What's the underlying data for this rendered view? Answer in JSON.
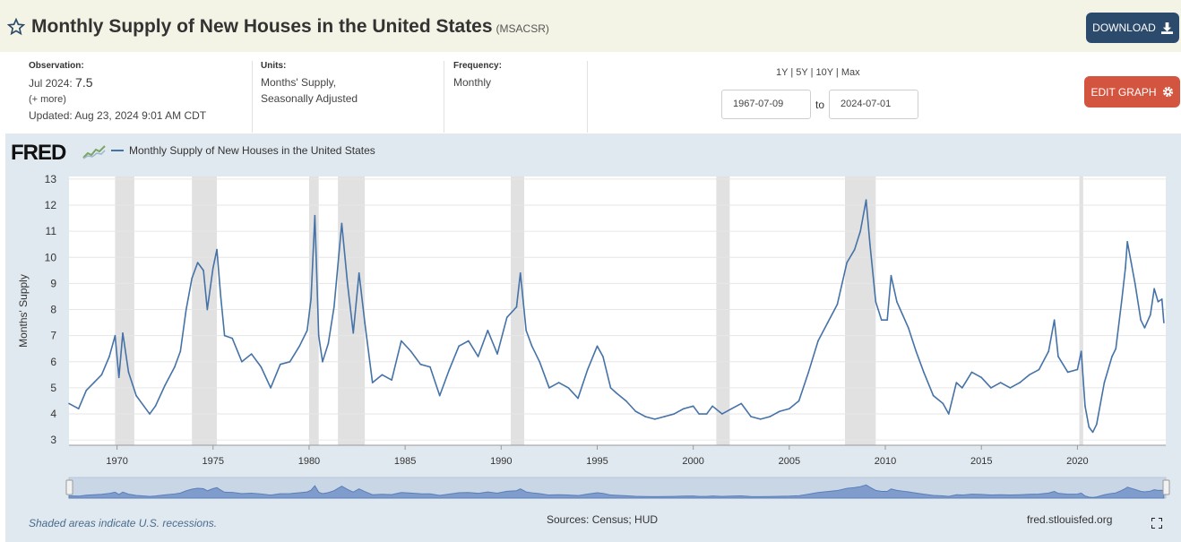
{
  "header": {
    "title": "Monthly Supply of New Houses in the United States",
    "series_id": "(MSACSR)",
    "download_label": "DOWNLOAD"
  },
  "meta": {
    "observation_label": "Observation:",
    "observation_date": "Jul 2024:",
    "observation_value": "7.5",
    "more_link": "(+ more)",
    "updated": "Updated: Aug 23, 2024 9:01 AM CDT",
    "units_label": "Units:",
    "units_line1": "Months' Supply,",
    "units_line2": "Seasonally Adjusted",
    "frequency_label": "Frequency:",
    "frequency_value": "Monthly"
  },
  "controls": {
    "range_links": [
      "1Y",
      "5Y",
      "10Y",
      "Max"
    ],
    "start_date": "1967-07-09",
    "to_label": "to",
    "end_date": "2024-07-01",
    "edit_label": "EDIT GRAPH"
  },
  "brand": {
    "logo": "FRED",
    "line_color": "#4572a7",
    "recession_color": "#e1e1e1",
    "accent_blue": "#2c4a6b",
    "accent_red": "#d4553f"
  },
  "footer": {
    "recession_note": "Shaded areas indicate U.S. recessions.",
    "sources": "Sources: Census; HUD",
    "site": "fred.stlouisfed.org"
  },
  "chart_data": {
    "type": "line",
    "series": [
      {
        "name": "Monthly Supply of New Houses in the United States",
        "points": [
          [
            1967.5,
            4.4
          ],
          [
            1968.0,
            4.2
          ],
          [
            1968.4,
            4.9
          ],
          [
            1968.8,
            5.2
          ],
          [
            1969.2,
            5.5
          ],
          [
            1969.6,
            6.2
          ],
          [
            1969.9,
            7.0
          ],
          [
            1970.1,
            5.4
          ],
          [
            1970.3,
            7.1
          ],
          [
            1970.6,
            5.6
          ],
          [
            1971.0,
            4.7
          ],
          [
            1971.4,
            4.3
          ],
          [
            1971.7,
            4.0
          ],
          [
            1972.0,
            4.3
          ],
          [
            1972.5,
            5.1
          ],
          [
            1973.0,
            5.8
          ],
          [
            1973.3,
            6.4
          ],
          [
            1973.6,
            8.0
          ],
          [
            1973.9,
            9.2
          ],
          [
            1974.2,
            9.8
          ],
          [
            1974.5,
            9.5
          ],
          [
            1974.7,
            8.0
          ],
          [
            1975.0,
            9.6
          ],
          [
            1975.2,
            10.3
          ],
          [
            1975.4,
            8.5
          ],
          [
            1975.6,
            7.0
          ],
          [
            1976.0,
            6.9
          ],
          [
            1976.5,
            6.0
          ],
          [
            1977.0,
            6.3
          ],
          [
            1977.5,
            5.8
          ],
          [
            1978.0,
            5.0
          ],
          [
            1978.5,
            5.9
          ],
          [
            1979.0,
            6.0
          ],
          [
            1979.5,
            6.6
          ],
          [
            1979.9,
            7.2
          ],
          [
            1980.1,
            8.4
          ],
          [
            1980.3,
            11.6
          ],
          [
            1980.5,
            7.0
          ],
          [
            1980.7,
            6.0
          ],
          [
            1981.0,
            6.7
          ],
          [
            1981.3,
            8.1
          ],
          [
            1981.7,
            11.3
          ],
          [
            1982.0,
            9.0
          ],
          [
            1982.3,
            7.1
          ],
          [
            1982.6,
            9.4
          ],
          [
            1982.9,
            7.5
          ],
          [
            1983.3,
            5.2
          ],
          [
            1983.8,
            5.5
          ],
          [
            1984.3,
            5.3
          ],
          [
            1984.8,
            6.8
          ],
          [
            1985.3,
            6.4
          ],
          [
            1985.8,
            5.9
          ],
          [
            1986.3,
            5.8
          ],
          [
            1986.8,
            4.7
          ],
          [
            1987.3,
            5.7
          ],
          [
            1987.8,
            6.6
          ],
          [
            1988.3,
            6.8
          ],
          [
            1988.8,
            6.2
          ],
          [
            1989.3,
            7.2
          ],
          [
            1989.8,
            6.3
          ],
          [
            1990.3,
            7.7
          ],
          [
            1990.8,
            8.1
          ],
          [
            1991.0,
            9.4
          ],
          [
            1991.3,
            7.2
          ],
          [
            1991.6,
            6.6
          ],
          [
            1992.0,
            6.0
          ],
          [
            1992.5,
            5.0
          ],
          [
            1993.0,
            5.2
          ],
          [
            1993.5,
            5.0
          ],
          [
            1994.0,
            4.6
          ],
          [
            1994.5,
            5.7
          ],
          [
            1995.0,
            6.6
          ],
          [
            1995.3,
            6.2
          ],
          [
            1995.7,
            5.0
          ],
          [
            1996.0,
            4.8
          ],
          [
            1996.5,
            4.5
          ],
          [
            1997.0,
            4.1
          ],
          [
            1997.5,
            3.9
          ],
          [
            1998.0,
            3.8
          ],
          [
            1998.5,
            3.9
          ],
          [
            1999.0,
            4.0
          ],
          [
            1999.5,
            4.2
          ],
          [
            2000.0,
            4.3
          ],
          [
            2000.3,
            4.0
          ],
          [
            2000.7,
            4.0
          ],
          [
            2001.0,
            4.3
          ],
          [
            2001.5,
            4.0
          ],
          [
            2002.0,
            4.2
          ],
          [
            2002.5,
            4.4
          ],
          [
            2003.0,
            3.9
          ],
          [
            2003.5,
            3.8
          ],
          [
            2004.0,
            3.9
          ],
          [
            2004.5,
            4.1
          ],
          [
            2005.0,
            4.2
          ],
          [
            2005.5,
            4.5
          ],
          [
            2006.0,
            5.6
          ],
          [
            2006.5,
            6.8
          ],
          [
            2007.0,
            7.5
          ],
          [
            2007.5,
            8.2
          ],
          [
            2008.0,
            9.8
          ],
          [
            2008.4,
            10.3
          ],
          [
            2008.7,
            11.0
          ],
          [
            2009.0,
            12.2
          ],
          [
            2009.2,
            10.5
          ],
          [
            2009.5,
            8.3
          ],
          [
            2009.8,
            7.6
          ],
          [
            2010.1,
            7.6
          ],
          [
            2010.3,
            9.3
          ],
          [
            2010.6,
            8.3
          ],
          [
            2010.9,
            7.8
          ],
          [
            2011.2,
            7.3
          ],
          [
            2011.6,
            6.4
          ],
          [
            2012.0,
            5.6
          ],
          [
            2012.5,
            4.7
          ],
          [
            2013.0,
            4.4
          ],
          [
            2013.3,
            4.0
          ],
          [
            2013.7,
            5.2
          ],
          [
            2014.0,
            5.0
          ],
          [
            2014.5,
            5.6
          ],
          [
            2015.0,
            5.4
          ],
          [
            2015.5,
            5.0
          ],
          [
            2016.0,
            5.2
          ],
          [
            2016.5,
            5.0
          ],
          [
            2017.0,
            5.2
          ],
          [
            2017.5,
            5.5
          ],
          [
            2018.0,
            5.7
          ],
          [
            2018.5,
            6.4
          ],
          [
            2018.8,
            7.6
          ],
          [
            2019.0,
            6.2
          ],
          [
            2019.5,
            5.6
          ],
          [
            2020.0,
            5.7
          ],
          [
            2020.2,
            6.4
          ],
          [
            2020.4,
            4.3
          ],
          [
            2020.6,
            3.5
          ],
          [
            2020.8,
            3.3
          ],
          [
            2021.0,
            3.6
          ],
          [
            2021.4,
            5.2
          ],
          [
            2021.8,
            6.2
          ],
          [
            2022.0,
            6.5
          ],
          [
            2022.3,
            8.3
          ],
          [
            2022.5,
            9.6
          ],
          [
            2022.6,
            10.6
          ],
          [
            2022.8,
            9.8
          ],
          [
            2023.0,
            9.0
          ],
          [
            2023.3,
            7.6
          ],
          [
            2023.5,
            7.3
          ],
          [
            2023.8,
            7.8
          ],
          [
            2024.0,
            8.8
          ],
          [
            2024.2,
            8.3
          ],
          [
            2024.4,
            8.4
          ],
          [
            2024.5,
            7.5
          ]
        ]
      }
    ],
    "recessions": [
      [
        1969.9,
        1970.9
      ],
      [
        1973.9,
        1975.2
      ],
      [
        1980.0,
        1980.5
      ],
      [
        1981.5,
        1982.9
      ],
      [
        1990.5,
        1991.2
      ],
      [
        2001.2,
        2001.9
      ],
      [
        2007.9,
        2009.5
      ],
      [
        2020.1,
        2020.3
      ]
    ],
    "x_ticks": [
      1970,
      1975,
      1980,
      1985,
      1990,
      1995,
      2000,
      2005,
      2010,
      2015,
      2020
    ],
    "y_ticks": [
      3,
      4,
      5,
      6,
      7,
      8,
      9,
      10,
      11,
      12,
      13
    ],
    "xlim": [
      1967.5,
      2024.6
    ],
    "ylim": [
      2.8,
      13.1
    ],
    "ylabel": "Months' Supply",
    "grid": true,
    "legend": "top-left"
  }
}
